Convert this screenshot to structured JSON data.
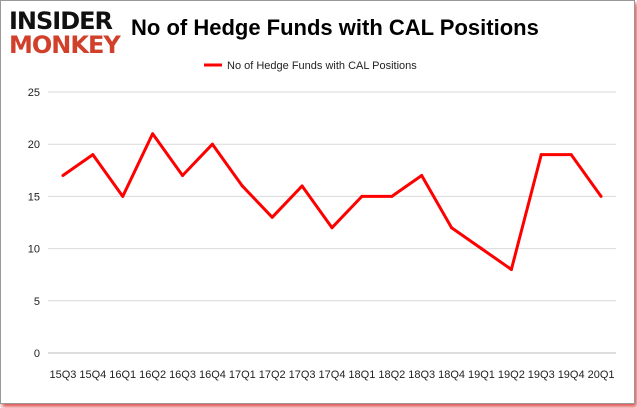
{
  "logo": {
    "line1": "INSIDER",
    "line2": "MONKEY"
  },
  "chart_data": {
    "type": "line",
    "title": "No of Hedge Funds with CAL Positions",
    "categories": [
      "15Q3",
      "15Q4",
      "16Q1",
      "16Q2",
      "16Q3",
      "16Q4",
      "17Q1",
      "17Q2",
      "17Q3",
      "17Q4",
      "18Q1",
      "18Q2",
      "18Q3",
      "18Q4",
      "19Q1",
      "19Q2",
      "19Q3",
      "19Q4",
      "20Q1"
    ],
    "series": [
      {
        "name": "No of Hedge Funds with CAL Positions",
        "values": [
          17,
          19,
          15,
          21,
          17,
          20,
          16,
          13,
          16,
          12,
          15,
          15,
          17,
          12,
          10,
          8,
          19,
          19,
          15
        ],
        "color": "#ff0000"
      }
    ],
    "ylim": [
      0,
      25
    ],
    "yticks": [
      0,
      5,
      10,
      15,
      20,
      25
    ],
    "grid": true,
    "legend": "top"
  }
}
